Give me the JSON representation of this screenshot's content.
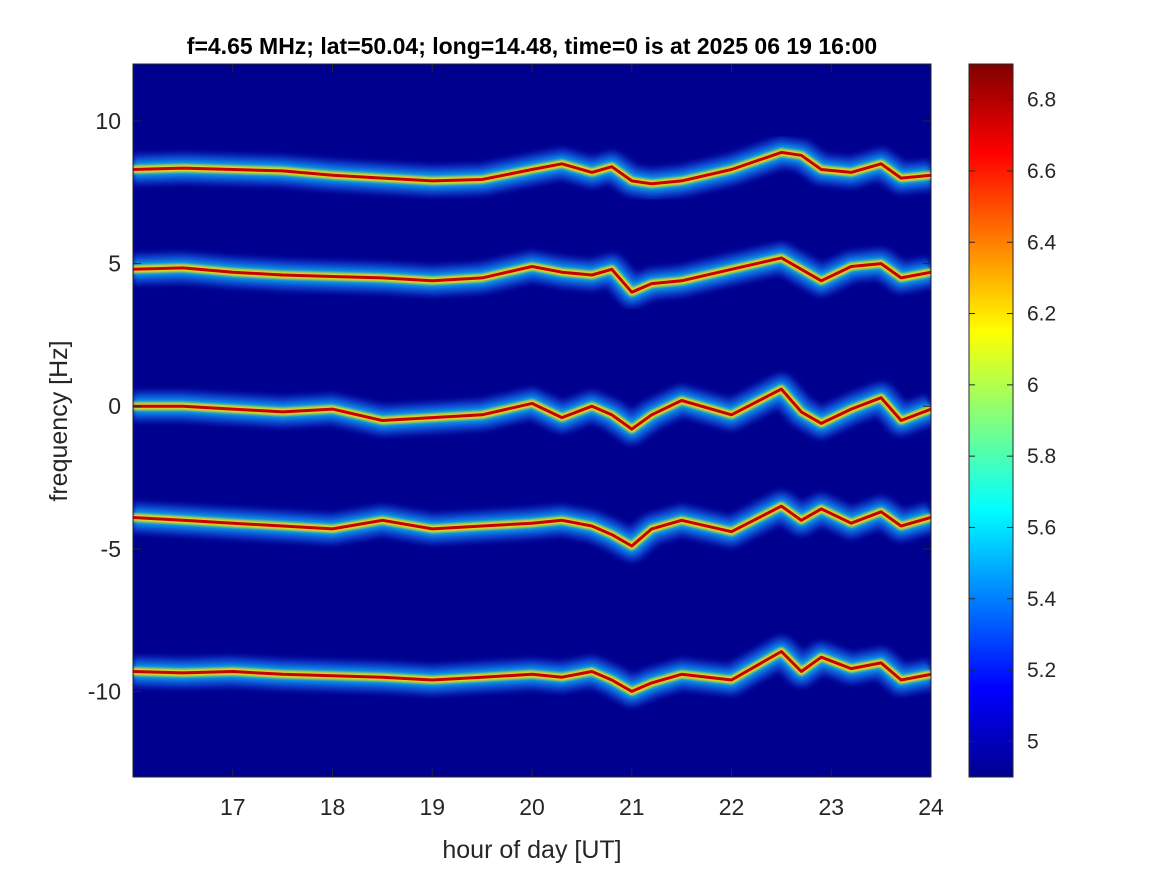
{
  "chart_data": {
    "type": "heatmap",
    "title": "f=4.65 MHz;  lat=50.04; long=14.48, time=0 is at 2025 06 19 16:00",
    "xlabel": "hour of day [UT]",
    "ylabel": "frequency [Hz]",
    "xlim": [
      16,
      24
    ],
    "ylim": [
      -13,
      12
    ],
    "x_ticks": [
      17,
      18,
      19,
      20,
      21,
      22,
      23,
      24
    ],
    "y_ticks": [
      -10,
      -5,
      0,
      5,
      10
    ],
    "colorbar": {
      "colormap": "jet",
      "range": [
        4.9,
        6.9
      ],
      "ticks": [
        5,
        5.2,
        5.4,
        5.6,
        5.8,
        6,
        6.2,
        6.4,
        6.6,
        6.8
      ]
    },
    "background_color": "#00008F",
    "bands": [
      {
        "center_hz": 8.35,
        "points": [
          [
            16.0,
            8.3
          ],
          [
            16.5,
            8.35
          ],
          [
            17.0,
            8.3
          ],
          [
            17.5,
            8.25
          ],
          [
            18.0,
            8.1
          ],
          [
            18.5,
            8.0
          ],
          [
            19.0,
            7.9
          ],
          [
            19.5,
            7.95
          ],
          [
            20.0,
            8.3
          ],
          [
            20.3,
            8.5
          ],
          [
            20.6,
            8.2
          ],
          [
            20.8,
            8.4
          ],
          [
            21.0,
            7.9
          ],
          [
            21.2,
            7.8
          ],
          [
            21.5,
            7.9
          ],
          [
            22.0,
            8.3
          ],
          [
            22.5,
            8.9
          ],
          [
            22.7,
            8.8
          ],
          [
            22.9,
            8.3
          ],
          [
            23.2,
            8.2
          ],
          [
            23.5,
            8.5
          ],
          [
            23.7,
            8.0
          ],
          [
            24.0,
            8.1
          ]
        ]
      },
      {
        "center_hz": 4.85,
        "points": [
          [
            16.0,
            4.8
          ],
          [
            16.5,
            4.85
          ],
          [
            17.0,
            4.7
          ],
          [
            17.5,
            4.6
          ],
          [
            18.0,
            4.55
          ],
          [
            18.5,
            4.5
          ],
          [
            19.0,
            4.4
          ],
          [
            19.5,
            4.5
          ],
          [
            20.0,
            4.9
          ],
          [
            20.3,
            4.7
          ],
          [
            20.6,
            4.6
          ],
          [
            20.8,
            4.8
          ],
          [
            21.0,
            4.0
          ],
          [
            21.2,
            4.3
          ],
          [
            21.5,
            4.4
          ],
          [
            22.0,
            4.8
          ],
          [
            22.5,
            5.2
          ],
          [
            22.7,
            4.8
          ],
          [
            22.9,
            4.4
          ],
          [
            23.2,
            4.9
          ],
          [
            23.5,
            5.0
          ],
          [
            23.7,
            4.5
          ],
          [
            24.0,
            4.7
          ]
        ]
      },
      {
        "center_hz": 0.0,
        "points": [
          [
            16.0,
            0.0
          ],
          [
            16.5,
            0.0
          ],
          [
            17.0,
            -0.1
          ],
          [
            17.5,
            -0.2
          ],
          [
            18.0,
            -0.1
          ],
          [
            18.5,
            -0.5
          ],
          [
            19.0,
            -0.4
          ],
          [
            19.5,
            -0.3
          ],
          [
            20.0,
            0.1
          ],
          [
            20.3,
            -0.4
          ],
          [
            20.6,
            0.0
          ],
          [
            20.8,
            -0.3
          ],
          [
            21.0,
            -0.8
          ],
          [
            21.2,
            -0.3
          ],
          [
            21.5,
            0.2
          ],
          [
            22.0,
            -0.3
          ],
          [
            22.5,
            0.6
          ],
          [
            22.7,
            -0.2
          ],
          [
            22.9,
            -0.6
          ],
          [
            23.2,
            -0.1
          ],
          [
            23.5,
            0.3
          ],
          [
            23.7,
            -0.5
          ],
          [
            24.0,
            -0.1
          ]
        ]
      },
      {
        "center_hz": -4.0,
        "points": [
          [
            16.0,
            -3.9
          ],
          [
            16.5,
            -4.0
          ],
          [
            17.0,
            -4.1
          ],
          [
            17.5,
            -4.2
          ],
          [
            18.0,
            -4.3
          ],
          [
            18.5,
            -4.0
          ],
          [
            19.0,
            -4.3
          ],
          [
            19.5,
            -4.2
          ],
          [
            20.0,
            -4.1
          ],
          [
            20.3,
            -4.0
          ],
          [
            20.6,
            -4.2
          ],
          [
            20.8,
            -4.5
          ],
          [
            21.0,
            -4.9
          ],
          [
            21.2,
            -4.3
          ],
          [
            21.5,
            -4.0
          ],
          [
            22.0,
            -4.4
          ],
          [
            22.5,
            -3.5
          ],
          [
            22.7,
            -4.0
          ],
          [
            22.9,
            -3.6
          ],
          [
            23.2,
            -4.1
          ],
          [
            23.5,
            -3.7
          ],
          [
            23.7,
            -4.2
          ],
          [
            24.0,
            -3.9
          ]
        ]
      },
      {
        "center_hz": -9.3,
        "points": [
          [
            16.0,
            -9.3
          ],
          [
            16.5,
            -9.35
          ],
          [
            17.0,
            -9.3
          ],
          [
            17.5,
            -9.4
          ],
          [
            18.0,
            -9.45
          ],
          [
            18.5,
            -9.5
          ],
          [
            19.0,
            -9.6
          ],
          [
            19.5,
            -9.5
          ],
          [
            20.0,
            -9.4
          ],
          [
            20.3,
            -9.5
          ],
          [
            20.6,
            -9.3
          ],
          [
            20.8,
            -9.6
          ],
          [
            21.0,
            -10.0
          ],
          [
            21.2,
            -9.7
          ],
          [
            21.5,
            -9.4
          ],
          [
            22.0,
            -9.6
          ],
          [
            22.5,
            -8.6
          ],
          [
            22.7,
            -9.3
          ],
          [
            22.9,
            -8.8
          ],
          [
            23.2,
            -9.2
          ],
          [
            23.5,
            -9.0
          ],
          [
            23.7,
            -9.6
          ],
          [
            24.0,
            -9.4
          ]
        ]
      }
    ]
  }
}
